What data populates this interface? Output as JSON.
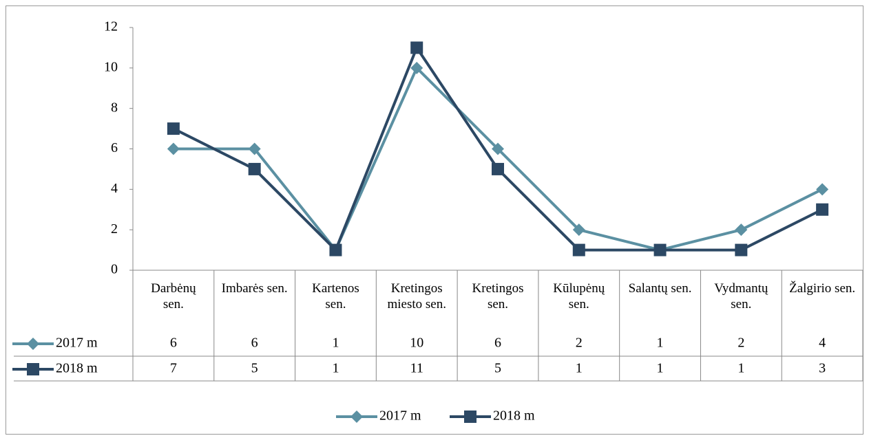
{
  "chart_data": {
    "type": "line",
    "categories": [
      "Darbėnų sen.",
      "Imbarės sen.",
      "Kartenos sen.",
      "Kretingos miesto sen.",
      "Kretingos sen.",
      "Kūlupėnų sen.",
      "Salantų sen.",
      "Vydmantų sen.",
      "Žalgirio sen."
    ],
    "series": [
      {
        "name": "2017 m",
        "color": "#5b90a2",
        "marker": "diamond",
        "values": [
          6,
          6,
          1,
          10,
          6,
          2,
          1,
          2,
          4
        ]
      },
      {
        "name": "2018 m",
        "color": "#2c4864",
        "marker": "square",
        "values": [
          7,
          5,
          1,
          11,
          5,
          1,
          1,
          1,
          3
        ]
      }
    ],
    "ylim": [
      0,
      12
    ],
    "yticks": [
      0,
      2,
      4,
      6,
      8,
      10,
      12
    ],
    "data_table": true,
    "legend": "bottom"
  }
}
